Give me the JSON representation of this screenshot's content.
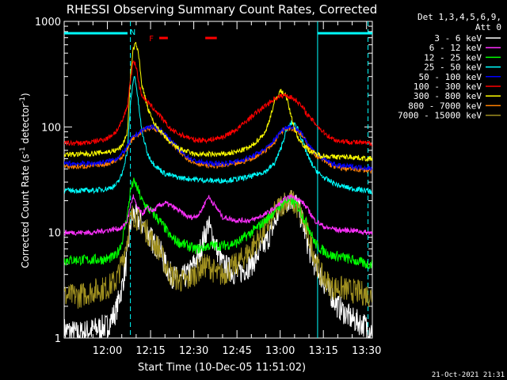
{
  "chart_data": {
    "type": "line",
    "title": "RHESSI Observing Summary Count Rates, Corrected",
    "xlabel": "Start Time (10-Dec-05 11:51:02)",
    "ylabel_main": "Corrected Count Rate (s",
    "ylabel_sup1": "-1",
    "ylabel_mid": " detector",
    "ylabel_sup2": "-1",
    "ylabel_end": ")",
    "yscale": "log",
    "ylim": [
      1,
      1000
    ],
    "xlim_minutes": [
      -4,
      33
    ],
    "y_ticks": [
      "1",
      "10",
      "100",
      "1000"
    ],
    "x_ticks": [
      {
        "label": "12:00",
        "min": 0
      },
      {
        "label": "12:15",
        "min": 15
      },
      {
        "label": "12:30",
        "min": 30
      },
      {
        "label": "12:45",
        "min": 45
      },
      {
        "label": "13:00",
        "min": 60
      },
      {
        "label": "13:15",
        "min": 75
      },
      {
        "label": "13:30",
        "min": 90
      }
    ],
    "x_range_minutes": [
      -15,
      92
    ],
    "legend_header": [
      "Det 1,3,4,5,6,9,",
      "Att 0"
    ],
    "timestamp": "21-Oct-2021 21:31",
    "flag_labels": {
      "night": "N",
      "flare": "F"
    },
    "night_intervals": [
      [
        -15,
        7
      ],
      [
        73,
        92
      ]
    ],
    "flare_intervals": [
      [
        18,
        21
      ],
      [
        34,
        38
      ]
    ],
    "night_boundaries": [
      8,
      73
    ],
    "series": [
      {
        "name": "3 - 6 keV",
        "color": "#ffffff",
        "x": [
          -15,
          -10,
          -5,
          0,
          3,
          5,
          7,
          8,
          9,
          10,
          12,
          14,
          16,
          18,
          20,
          22,
          25,
          28,
          30,
          32,
          35,
          38,
          40,
          45,
          50,
          55,
          58,
          60,
          62,
          64,
          66,
          68,
          70,
          72,
          74,
          76,
          78,
          80,
          85,
          90,
          92
        ],
        "y": [
          1.2,
          1.1,
          1.2,
          1.3,
          1.8,
          3.0,
          6.0,
          12,
          15,
          14,
          12,
          10,
          8,
          7,
          5,
          4,
          3.5,
          4,
          5,
          6.5,
          12,
          7,
          5,
          4,
          5,
          8,
          12,
          17,
          20,
          21,
          18,
          12,
          7,
          5,
          4,
          3,
          2.5,
          2,
          1.5,
          1.3,
          1.2
        ]
      },
      {
        "name": "6 - 12 keV",
        "color": "#ff30ff",
        "x": [
          -15,
          -10,
          -5,
          0,
          5,
          7,
          8,
          9,
          10,
          12,
          14,
          16,
          18,
          20,
          22,
          25,
          28,
          30,
          32,
          35,
          38,
          40,
          45,
          50,
          55,
          58,
          60,
          62,
          64,
          66,
          68,
          70,
          72,
          74,
          76,
          78,
          80,
          85,
          90,
          92
        ],
        "y": [
          10,
          10,
          10,
          10.5,
          11,
          13,
          18,
          22,
          18,
          15,
          17,
          16,
          18,
          19,
          18,
          16,
          14,
          14,
          15,
          22,
          17,
          14,
          13,
          13,
          15,
          17,
          19,
          21,
          22,
          21,
          19,
          16,
          13,
          12,
          11,
          11,
          10.5,
          10.5,
          10,
          10
        ]
      },
      {
        "name": "12 - 25 keV",
        "color": "#00ff00",
        "x": [
          -15,
          -10,
          -5,
          0,
          3,
          5,
          7,
          8,
          9,
          10,
          12,
          14,
          16,
          18,
          20,
          22,
          25,
          28,
          30,
          32,
          35,
          38,
          40,
          45,
          50,
          55,
          58,
          60,
          62,
          64,
          66,
          68,
          70,
          72,
          74,
          76,
          78,
          80,
          85,
          90,
          92
        ],
        "y": [
          5.5,
          5.5,
          5.5,
          5.6,
          6,
          8,
          15,
          25,
          30,
          28,
          20,
          17,
          15,
          13,
          11,
          9,
          8,
          7.5,
          7,
          7,
          7.5,
          7.5,
          7.5,
          8,
          10,
          13,
          16,
          18,
          20,
          20,
          18,
          14,
          11,
          8,
          7,
          6.5,
          6,
          6,
          5.5,
          5,
          5
        ]
      },
      {
        "name": "25 - 50 keV",
        "color": "#00ffff",
        "x": [
          -15,
          -10,
          -5,
          0,
          3,
          5,
          7,
          8,
          9,
          9.5,
          10,
          11,
          12,
          14,
          16,
          18,
          20,
          25,
          30,
          35,
          40,
          45,
          50,
          55,
          58,
          60,
          62,
          64,
          66,
          68,
          70,
          72,
          74,
          76,
          78,
          80,
          85,
          90,
          92
        ],
        "y": [
          25,
          25,
          25,
          26,
          28,
          35,
          60,
          160,
          280,
          300,
          250,
          150,
          90,
          55,
          45,
          40,
          36,
          33,
          32,
          31,
          31,
          32,
          34,
          38,
          45,
          60,
          90,
          110,
          100,
          70,
          50,
          40,
          35,
          32,
          30,
          28,
          26,
          25,
          24
        ]
      },
      {
        "name": "50 - 100 keV",
        "color": "#0000ff",
        "x": [
          -15,
          -10,
          -5,
          0,
          3,
          5,
          7,
          8,
          9,
          10,
          12,
          14,
          16,
          18,
          20,
          22,
          25,
          28,
          30,
          35,
          40,
          45,
          50,
          55,
          58,
          60,
          62,
          64,
          66,
          68,
          70,
          72,
          74,
          76,
          78,
          80,
          85,
          90,
          92
        ],
        "y": [
          45,
          45,
          45,
          47,
          50,
          55,
          65,
          75,
          80,
          85,
          92,
          100,
          100,
          95,
          85,
          75,
          60,
          52,
          48,
          45,
          45,
          47,
          52,
          62,
          75,
          90,
          100,
          100,
          95,
          82,
          68,
          58,
          52,
          48,
          45,
          43,
          42,
          41,
          40
        ]
      },
      {
        "name": "100 - 300 keV",
        "color": "#ff0000",
        "x": [
          -15,
          -10,
          -5,
          0,
          3,
          5,
          7,
          8,
          9,
          10,
          11,
          12,
          14,
          16,
          18,
          20,
          22,
          25,
          28,
          30,
          35,
          40,
          45,
          50,
          55,
          58,
          60,
          62,
          64,
          66,
          68,
          70,
          72,
          74,
          76,
          78,
          80,
          85,
          90,
          92
        ],
        "y": [
          70,
          70,
          72,
          78,
          90,
          110,
          160,
          280,
          420,
          380,
          250,
          200,
          170,
          150,
          130,
          110,
          95,
          85,
          80,
          75,
          75,
          80,
          95,
          125,
          160,
          185,
          195,
          200,
          190,
          175,
          150,
          125,
          110,
          95,
          85,
          78,
          74,
          72,
          70,
          70
        ]
      },
      {
        "name": "300 - 800 keV",
        "color": "#ffff00",
        "x": [
          -15,
          -10,
          -5,
          0,
          3,
          5,
          7,
          8,
          9,
          10,
          11,
          12,
          14,
          16,
          18,
          20,
          22,
          25,
          28,
          30,
          35,
          40,
          45,
          50,
          55,
          58,
          60,
          62,
          64,
          66,
          68,
          70,
          72,
          74,
          76,
          78,
          80,
          85,
          90,
          92
        ],
        "y": [
          55,
          55,
          56,
          58,
          60,
          65,
          90,
          300,
          550,
          620,
          450,
          250,
          150,
          110,
          95,
          80,
          70,
          62,
          58,
          55,
          55,
          55,
          58,
          65,
          90,
          170,
          220,
          200,
          120,
          80,
          68,
          60,
          56,
          54,
          53,
          52,
          52,
          52,
          50,
          50
        ]
      },
      {
        "name": "800 - 7000 keV",
        "color": "#ff8000",
        "x": [
          -15,
          -10,
          -5,
          0,
          3,
          5,
          7,
          8,
          9,
          10,
          12,
          14,
          16,
          18,
          20,
          22,
          25,
          28,
          30,
          35,
          40,
          45,
          50,
          55,
          58,
          60,
          62,
          64,
          66,
          68,
          70,
          72,
          74,
          76,
          78,
          80,
          85,
          90,
          92
        ],
        "y": [
          42,
          42,
          43,
          45,
          48,
          52,
          62,
          72,
          78,
          82,
          90,
          98,
          98,
          92,
          82,
          72,
          58,
          50,
          46,
          43,
          43,
          45,
          50,
          60,
          72,
          88,
          98,
          97,
          92,
          80,
          65,
          55,
          50,
          46,
          43,
          41,
          40,
          39,
          38
        ]
      },
      {
        "name": "7000 - 15000 keV",
        "color": "#a09020",
        "x": [
          -15,
          -10,
          -5,
          0,
          3,
          5,
          7,
          8,
          9,
          10,
          12,
          14,
          16,
          18,
          20,
          22,
          25,
          28,
          30,
          32,
          35,
          38,
          40,
          45,
          50,
          55,
          58,
          60,
          62,
          64,
          66,
          68,
          70,
          72,
          74,
          76,
          78,
          80,
          85,
          90,
          92
        ],
        "y": [
          2.5,
          2.5,
          2.8,
          3,
          3.5,
          5,
          9,
          13,
          15,
          14,
          12,
          10,
          8,
          7,
          5,
          4,
          3.5,
          3.5,
          4,
          4.5,
          5,
          4,
          4,
          5,
          7,
          11,
          15,
          18,
          20,
          20,
          17,
          13,
          9,
          6,
          4,
          3.5,
          3,
          3,
          2.8,
          2.6,
          2.5
        ]
      }
    ]
  }
}
